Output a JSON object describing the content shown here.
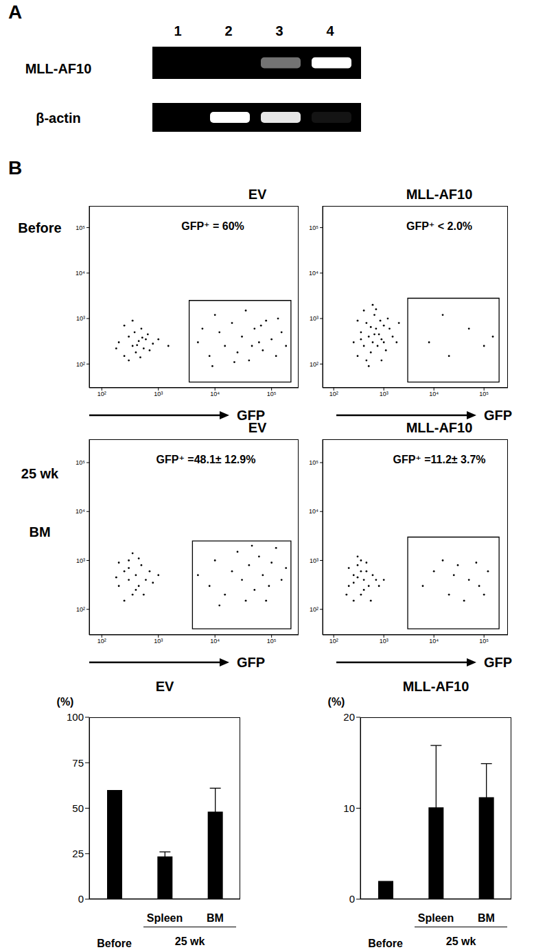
{
  "panel_labels": [
    "A",
    "B"
  ],
  "gel": {
    "lanes": [
      1,
      2,
      3,
      4
    ],
    "rows": [
      {
        "label": "MLL-AF10",
        "intensity": [
          0,
          0,
          0.45,
          1
        ]
      },
      {
        "label": "β-actin",
        "intensity": [
          0,
          1,
          0.9,
          0.08
        ]
      }
    ]
  },
  "row_labels": [
    [
      "Before"
    ],
    [
      "25 wk",
      "BM"
    ]
  ],
  "chart_data": [
    {
      "type": "scatter",
      "title": "EV",
      "annotation": "GFP⁺ = 60%",
      "x_label": "GFP",
      "log": true,
      "color": "#000000",
      "xlim": [
        60,
        300000
      ],
      "ylim": [
        30,
        300000
      ],
      "xticks": [
        {
          "value": 100,
          "label": "10²"
        },
        {
          "value": 1000,
          "label": "10³"
        },
        {
          "value": 10000,
          "label": "10⁴"
        },
        {
          "value": 100000,
          "label": "10⁵"
        }
      ],
      "yticks": [
        {
          "value": 100,
          "label": "10²"
        },
        {
          "value": 1000,
          "label": "10³"
        },
        {
          "value": 10000,
          "label": "10⁴"
        },
        {
          "value": 100000,
          "label": "10⁵"
        }
      ],
      "gate": {
        "x": [
          3500,
          220000
        ],
        "y": [
          40,
          2500
        ]
      },
      "x": [
        200,
        250,
        300,
        350,
        400,
        450,
        500,
        550,
        300,
        380,
        420,
        600,
        700,
        250,
        480,
        650,
        800,
        350,
        1000,
        1500,
        180,
        520,
        5000,
        8000,
        12000,
        15000,
        20000,
        25000,
        30000,
        40000,
        50000,
        60000,
        70000,
        80000,
        100000,
        120000,
        150000,
        180000,
        10000,
        35000,
        9000,
        65000,
        45000,
        130000,
        6000,
        22000
      ],
      "y": [
        300,
        150,
        400,
        250,
        180,
        320,
        600,
        220,
        120,
        500,
        260,
        350,
        200,
        700,
        140,
        450,
        280,
        900,
        350,
        250,
        220,
        380,
        300,
        150,
        500,
        250,
        800,
        180,
        400,
        120,
        600,
        300,
        200,
        900,
        350,
        150,
        500,
        250,
        1200,
        1500,
        90,
        700,
        250,
        1000,
        600,
        110
      ]
    },
    {
      "type": "scatter",
      "title": "MLL-AF10",
      "annotation": "GFP⁺ < 2.0%",
      "x_label": "GFP",
      "log": true,
      "color": "#000000",
      "xlim": [
        60,
        300000
      ],
      "ylim": [
        30,
        300000
      ],
      "xticks": [
        {
          "value": 100,
          "label": "10²"
        },
        {
          "value": 1000,
          "label": "10³"
        },
        {
          "value": 10000,
          "label": "10⁴"
        },
        {
          "value": 100000,
          "label": "10⁵"
        }
      ],
      "yticks": [
        {
          "value": 100,
          "label": "10²"
        },
        {
          "value": 1000,
          "label": "10³"
        },
        {
          "value": 10000,
          "label": "10⁴"
        },
        {
          "value": 100000,
          "label": "10⁵"
        }
      ],
      "gate": {
        "x": [
          3000,
          200000
        ],
        "y": [
          40,
          2800
        ]
      },
      "x": [
        250,
        300,
        350,
        400,
        450,
        500,
        550,
        600,
        650,
        700,
        750,
        800,
        900,
        1000,
        1100,
        1200,
        1500,
        400,
        600,
        300,
        900,
        500,
        700,
        1300,
        350,
        550,
        850,
        1800,
        2000,
        450,
        650,
        1000,
        8000,
        20000,
        50000,
        100000,
        15000,
        150000
      ],
      "y": [
        300,
        150,
        500,
        250,
        800,
        400,
        180,
        300,
        1200,
        600,
        250,
        450,
        350,
        700,
        200,
        1000,
        400,
        1500,
        2000,
        900,
        120,
        90,
        1600,
        600,
        350,
        650,
        900,
        300,
        800,
        120,
        450,
        300,
        300,
        150,
        600,
        250,
        1200,
        400
      ]
    },
    {
      "type": "scatter",
      "title": "EV",
      "annotation": "GFP⁺ =48.1± 12.9%",
      "x_label": "GFP",
      "log": true,
      "color": "#000000",
      "xlim": [
        60,
        300000
      ],
      "ylim": [
        30,
        300000
      ],
      "xticks": [
        {
          "value": 100,
          "label": "10²"
        },
        {
          "value": 1000,
          "label": "10³"
        },
        {
          "value": 10000,
          "label": "10⁴"
        },
        {
          "value": 100000,
          "label": "10⁵"
        }
      ],
      "yticks": [
        {
          "value": 100,
          "label": "10²"
        },
        {
          "value": 1000,
          "label": "10³"
        },
        {
          "value": 10000,
          "label": "10⁴"
        },
        {
          "value": 100000,
          "label": "10⁵"
        }
      ],
      "gate": {
        "x": [
          4000,
          220000
        ],
        "y": [
          40,
          2500
        ]
      },
      "x": [
        200,
        250,
        300,
        350,
        300,
        400,
        450,
        250,
        500,
        350,
        600,
        200,
        400,
        700,
        550,
        300,
        800,
        450,
        1000,
        180,
        5000,
        8000,
        10000,
        15000,
        20000,
        25000,
        30000,
        40000,
        50000,
        60000,
        70000,
        90000,
        100000,
        120000,
        150000,
        180000,
        12000,
        35000,
        45000,
        80000
      ],
      "y": [
        300,
        600,
        400,
        200,
        1000,
        500,
        300,
        150,
        800,
        1400,
        400,
        900,
        250,
        600,
        200,
        700,
        350,
        1100,
        500,
        450,
        500,
        300,
        1000,
        200,
        600,
        1500,
        400,
        800,
        250,
        1200,
        500,
        300,
        900,
        1800,
        400,
        700,
        120,
        150,
        2000,
        150
      ]
    },
    {
      "type": "scatter",
      "title": "MLL-AF10",
      "annotation": "GFP⁺ =11.2± 3.7%",
      "x_label": "GFP",
      "log": true,
      "color": "#000000",
      "xlim": [
        60,
        300000
      ],
      "ylim": [
        30,
        300000
      ],
      "xticks": [
        {
          "value": 100,
          "label": "10²"
        },
        {
          "value": 1000,
          "label": "10³"
        },
        {
          "value": 10000,
          "label": "10⁴"
        },
        {
          "value": 100000,
          "label": "10⁵"
        }
      ],
      "yticks": [
        {
          "value": 100,
          "label": "10²"
        },
        {
          "value": 1000,
          "label": "10³"
        },
        {
          "value": 10000,
          "label": "10⁴"
        },
        {
          "value": 100000,
          "label": "10⁵"
        }
      ],
      "gate": {
        "x": [
          3000,
          200000
        ],
        "y": [
          40,
          3000
        ]
      },
      "x": [
        200,
        250,
        300,
        350,
        300,
        400,
        450,
        250,
        500,
        350,
        600,
        200,
        400,
        700,
        550,
        300,
        800,
        450,
        1000,
        180,
        350,
        250,
        6000,
        10000,
        20000,
        30000,
        50000,
        80000,
        120000,
        15000,
        40000,
        70000,
        100000,
        25000
      ],
      "y": [
        300,
        500,
        800,
        200,
        1200,
        400,
        600,
        150,
        300,
        1000,
        500,
        700,
        250,
        400,
        150,
        450,
        300,
        900,
        400,
        200,
        600,
        350,
        300,
        600,
        200,
        800,
        400,
        300,
        600,
        1000,
        150,
        900,
        200,
        500
      ]
    },
    {
      "type": "bar",
      "title": "EV",
      "y_label": "(%)",
      "color": "#000000",
      "categories": [
        "Before",
        "Spleen",
        "BM"
      ],
      "values": [
        60,
        23.5,
        48.1
      ],
      "errors": [
        null,
        2.5,
        12.9
      ],
      "group_label": {
        "label": "25 wk",
        "categories": [
          "Spleen",
          "BM"
        ]
      },
      "ylim": [
        0,
        100
      ],
      "yticks": [
        0,
        25,
        50,
        75,
        100
      ]
    },
    {
      "type": "bar",
      "title": "MLL-AF10",
      "y_label": "(%)",
      "color": "#000000",
      "categories": [
        "Before",
        "Spleen",
        "BM"
      ],
      "values": [
        2,
        10.1,
        11.2
      ],
      "errors": [
        null,
        6.8,
        3.7
      ],
      "group_label": {
        "label": "25 wk",
        "categories": [
          "Spleen",
          "BM"
        ]
      },
      "ylim": [
        0,
        20
      ],
      "yticks": [
        0,
        10,
        20
      ]
    }
  ]
}
